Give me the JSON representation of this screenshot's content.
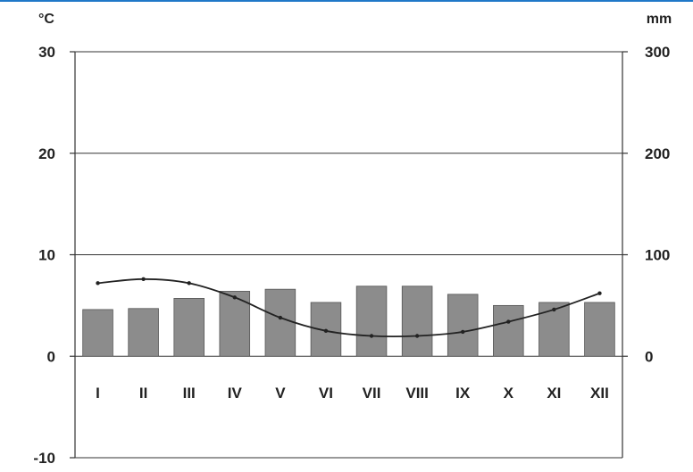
{
  "chart_data": {
    "type": "bar+line",
    "categories": [
      "I",
      "II",
      "III",
      "IV",
      "V",
      "VI",
      "VII",
      "VIII",
      "IX",
      "X",
      "XI",
      "XII"
    ],
    "left_axis": {
      "unit": "°C",
      "ticks": [
        "30",
        "20",
        "10",
        "0",
        "-10"
      ],
      "ylim": [
        -10,
        30
      ]
    },
    "right_axis": {
      "unit": "mm",
      "ticks": [
        "300",
        "200",
        "100",
        "0"
      ],
      "ylim": [
        -100,
        300
      ]
    },
    "series": [
      {
        "type": "bar",
        "axis": "right",
        "values": [
          46,
          47,
          57,
          64,
          66,
          53,
          69,
          69,
          61,
          50,
          53,
          53
        ],
        "color": "#8c8c8c"
      },
      {
        "type": "line",
        "axis": "left",
        "values": [
          7.2,
          7.6,
          7.2,
          5.8,
          3.8,
          2.5,
          2.0,
          2.0,
          2.4,
          3.4,
          4.6,
          6.2
        ],
        "color": "#222222"
      }
    ],
    "grid": "horizontal",
    "legend": "none"
  }
}
